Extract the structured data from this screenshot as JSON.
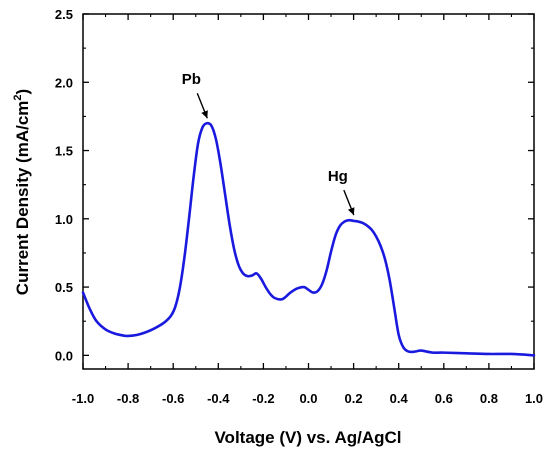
{
  "chart_data": {
    "type": "line",
    "title": "",
    "xlabel": "Voltage (V) vs. Ag/AgCl",
    "ylabel_main": "Current Density (mA/cm",
    "ylabel_sup": "2",
    "ylabel_close": ")",
    "xlim": [
      -1.0,
      1.0
    ],
    "ylim": [
      -0.1,
      2.5
    ],
    "xticks": [
      "-1.0",
      "-0.8",
      "-0.6",
      "-0.4",
      "-0.2",
      "0.0",
      "0.2",
      "0.4",
      "0.6",
      "0.8",
      "1.0"
    ],
    "yticks": [
      "0.0",
      "0.5",
      "1.0",
      "1.5",
      "2.0",
      "2.5"
    ],
    "grid": false,
    "line_color": "#1a1adf",
    "series": [
      {
        "x": [
          -1.0,
          -0.97,
          -0.94,
          -0.9,
          -0.86,
          -0.82,
          -0.8,
          -0.76,
          -0.72,
          -0.68,
          -0.64,
          -0.61,
          -0.59,
          -0.57,
          -0.55,
          -0.53,
          -0.51,
          -0.49,
          -0.47,
          -0.45,
          -0.43,
          -0.41,
          -0.39,
          -0.37,
          -0.35,
          -0.33,
          -0.31,
          -0.29,
          -0.27,
          -0.25,
          -0.23,
          -0.21,
          -0.19,
          -0.17,
          -0.15,
          -0.12,
          -0.1,
          -0.08,
          -0.05,
          -0.02,
          0.0,
          0.02,
          0.04,
          0.06,
          0.08,
          0.1,
          0.12,
          0.14,
          0.16,
          0.18,
          0.2,
          0.22,
          0.24,
          0.26,
          0.28,
          0.3,
          0.32,
          0.34,
          0.36,
          0.38,
          0.4,
          0.42,
          0.44,
          0.46,
          0.48,
          0.5,
          0.55,
          0.6,
          0.7,
          0.8,
          0.9,
          1.0
        ],
        "y": [
          0.46,
          0.34,
          0.25,
          0.19,
          0.16,
          0.145,
          0.142,
          0.15,
          0.17,
          0.2,
          0.24,
          0.29,
          0.36,
          0.5,
          0.72,
          1.0,
          1.3,
          1.55,
          1.67,
          1.7,
          1.68,
          1.58,
          1.4,
          1.18,
          0.96,
          0.78,
          0.66,
          0.6,
          0.58,
          0.585,
          0.6,
          0.56,
          0.5,
          0.45,
          0.42,
          0.41,
          0.43,
          0.46,
          0.49,
          0.5,
          0.48,
          0.46,
          0.47,
          0.52,
          0.62,
          0.76,
          0.88,
          0.95,
          0.98,
          0.99,
          0.985,
          0.98,
          0.97,
          0.95,
          0.92,
          0.87,
          0.8,
          0.7,
          0.55,
          0.35,
          0.15,
          0.06,
          0.03,
          0.025,
          0.03,
          0.035,
          0.02,
          0.02,
          0.015,
          0.01,
          0.01,
          0.0
        ]
      }
    ],
    "annotations": [
      {
        "text": "Pb",
        "x": -0.44,
        "y": 1.7
      },
      {
        "text": "Hg",
        "x": 0.21,
        "y": 0.99
      }
    ]
  }
}
